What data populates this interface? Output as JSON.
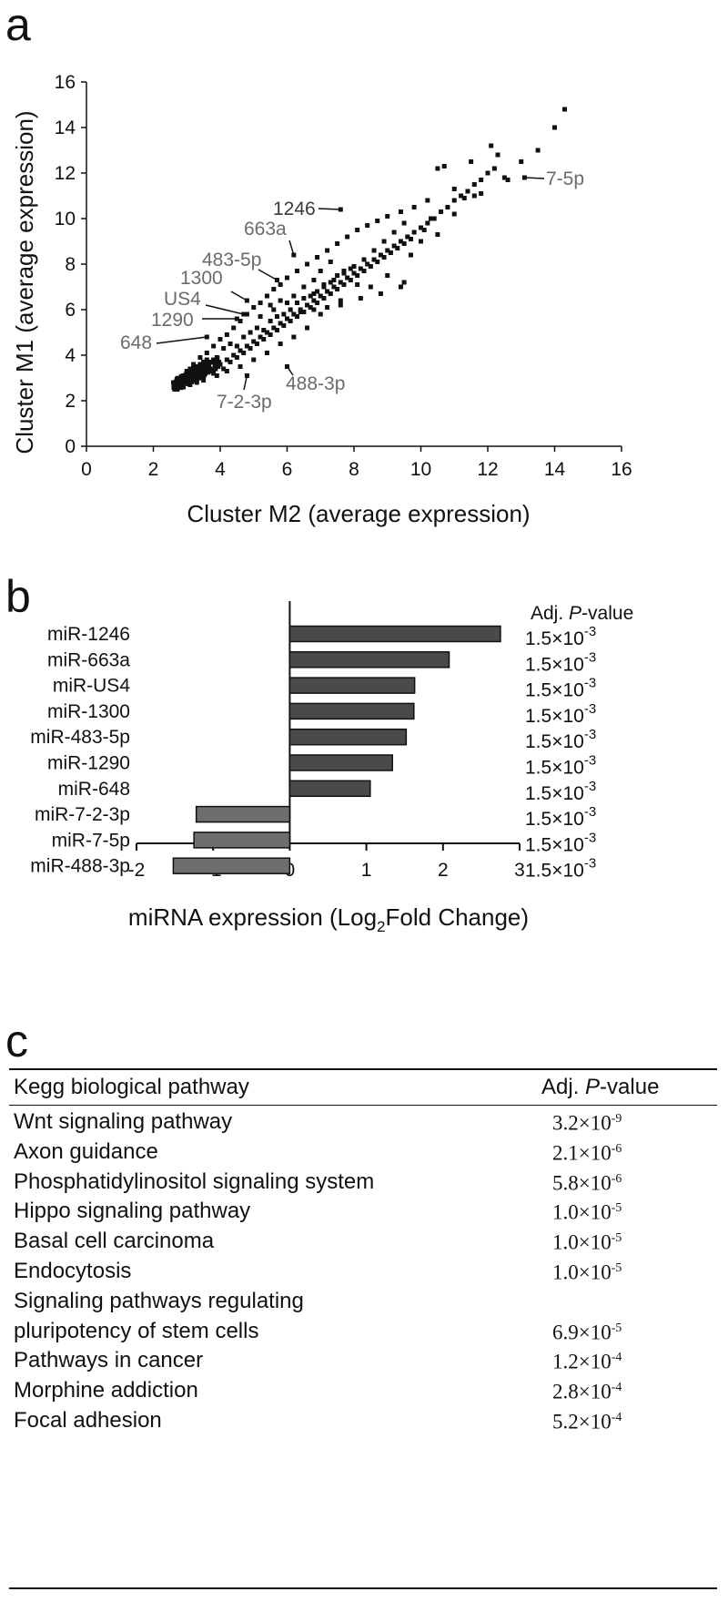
{
  "panels": {
    "a": "a",
    "b": "b",
    "c": "c"
  },
  "chart_data": [
    {
      "type": "scatter",
      "xlabel": "Cluster M2 (average expression)",
      "ylabel": "Cluster M1 (average expression)",
      "xlim": [
        0,
        16
      ],
      "ylim": [
        0,
        16
      ],
      "xticks": [
        0,
        2,
        4,
        6,
        8,
        10,
        12,
        14,
        16
      ],
      "yticks": [
        0,
        2,
        4,
        6,
        8,
        10,
        12,
        14,
        16
      ],
      "grid": false,
      "annotations": [
        {
          "label": "1246",
          "x": 7.6,
          "y": 10.4
        },
        {
          "label": "663a",
          "x": 6.2,
          "y": 8.4
        },
        {
          "label": "483-5p",
          "x": 5.7,
          "y": 7.3
        },
        {
          "label": "1300",
          "x": 4.8,
          "y": 6.4
        },
        {
          "label": "US4",
          "x": 4.7,
          "y": 5.8
        },
        {
          "label": "1290",
          "x": 4.5,
          "y": 5.6
        },
        {
          "label": "648",
          "x": 3.6,
          "y": 4.8
        },
        {
          "label": "7-5p",
          "x": 13.1,
          "y": 11.8
        },
        {
          "label": "488-3p",
          "x": 6.0,
          "y": 3.5
        },
        {
          "label": "7-2-3p",
          "x": 4.8,
          "y": 3.1
        }
      ],
      "points": [
        [
          2.6,
          2.8
        ],
        [
          2.7,
          2.7
        ],
        [
          2.8,
          2.8
        ],
        [
          2.9,
          2.7
        ],
        [
          3.0,
          2.9
        ],
        [
          3.1,
          2.8
        ],
        [
          3.2,
          3.0
        ],
        [
          3.3,
          2.9
        ],
        [
          3.4,
          3.2
        ],
        [
          3.5,
          3.1
        ],
        [
          3.6,
          3.3
        ],
        [
          3.7,
          3.4
        ],
        [
          3.8,
          3.2
        ],
        [
          3.9,
          3.5
        ],
        [
          4.0,
          3.6
        ],
        [
          4.1,
          3.4
        ],
        [
          4.2,
          3.8
        ],
        [
          4.3,
          3.7
        ],
        [
          4.4,
          4.0
        ],
        [
          4.5,
          3.9
        ],
        [
          4.6,
          4.2
        ],
        [
          4.7,
          4.1
        ],
        [
          4.8,
          4.4
        ],
        [
          4.9,
          4.3
        ],
        [
          5.0,
          4.6
        ],
        [
          5.1,
          4.5
        ],
        [
          5.2,
          4.8
        ],
        [
          5.3,
          4.7
        ],
        [
          5.4,
          5.0
        ],
        [
          5.5,
          4.9
        ],
        [
          5.6,
          5.2
        ],
        [
          5.7,
          5.1
        ],
        [
          5.8,
          5.4
        ],
        [
          5.9,
          5.3
        ],
        [
          6.0,
          5.6
        ],
        [
          6.1,
          5.5
        ],
        [
          6.2,
          5.8
        ],
        [
          6.3,
          5.7
        ],
        [
          6.4,
          6.0
        ],
        [
          6.5,
          5.9
        ],
        [
          6.6,
          6.2
        ],
        [
          6.7,
          6.1
        ],
        [
          6.8,
          6.4
        ],
        [
          6.9,
          6.3
        ],
        [
          7.0,
          6.6
        ],
        [
          7.1,
          6.5
        ],
        [
          7.2,
          6.8
        ],
        [
          7.3,
          6.7
        ],
        [
          7.4,
          7.0
        ],
        [
          7.5,
          6.9
        ],
        [
          7.6,
          7.2
        ],
        [
          7.7,
          7.1
        ],
        [
          7.8,
          7.4
        ],
        [
          7.9,
          7.3
        ],
        [
          8.0,
          7.6
        ],
        [
          8.1,
          7.5
        ],
        [
          8.2,
          7.8
        ],
        [
          8.3,
          7.7
        ],
        [
          8.4,
          8.0
        ],
        [
          8.5,
          7.9
        ],
        [
          8.6,
          8.2
        ],
        [
          8.7,
          8.1
        ],
        [
          8.8,
          8.4
        ],
        [
          8.9,
          8.3
        ],
        [
          9.0,
          8.6
        ],
        [
          9.1,
          8.5
        ],
        [
          9.2,
          8.8
        ],
        [
          9.3,
          8.7
        ],
        [
          9.4,
          9.0
        ],
        [
          9.5,
          8.9
        ],
        [
          9.6,
          9.2
        ],
        [
          9.7,
          9.1
        ],
        [
          9.8,
          9.4
        ],
        [
          10.0,
          9.6
        ],
        [
          10.2,
          9.8
        ],
        [
          10.4,
          10.0
        ],
        [
          10.6,
          10.3
        ],
        [
          10.8,
          10.5
        ],
        [
          11.0,
          10.8
        ],
        [
          11.2,
          11.0
        ],
        [
          11.4,
          11.2
        ],
        [
          11.6,
          11.5
        ],
        [
          11.8,
          11.7
        ],
        [
          12.0,
          12.0
        ],
        [
          12.2,
          12.2
        ],
        [
          12.5,
          11.8
        ],
        [
          13.0,
          12.5
        ],
        [
          13.5,
          13.0
        ],
        [
          14.0,
          14.0
        ],
        [
          14.3,
          14.8
        ],
        [
          3.0,
          3.3
        ],
        [
          3.2,
          3.6
        ],
        [
          3.4,
          3.9
        ],
        [
          3.6,
          4.1
        ],
        [
          3.8,
          4.4
        ],
        [
          4.0,
          4.7
        ],
        [
          4.2,
          4.9
        ],
        [
          4.4,
          5.2
        ],
        [
          4.6,
          5.5
        ],
        [
          4.8,
          5.8
        ],
        [
          5.0,
          6.1
        ],
        [
          5.2,
          6.3
        ],
        [
          5.4,
          6.6
        ],
        [
          5.6,
          6.9
        ],
        [
          5.8,
          7.1
        ],
        [
          6.0,
          7.4
        ],
        [
          6.3,
          7.7
        ],
        [
          6.6,
          8.0
        ],
        [
          6.9,
          8.3
        ],
        [
          7.2,
          8.6
        ],
        [
          7.5,
          8.9
        ],
        [
          7.8,
          9.2
        ],
        [
          8.1,
          9.5
        ],
        [
          8.4,
          9.7
        ],
        [
          8.7,
          9.9
        ],
        [
          9.0,
          10.1
        ],
        [
          9.4,
          10.3
        ],
        [
          9.8,
          10.5
        ],
        [
          10.2,
          10.8
        ],
        [
          10.5,
          12.2
        ],
        [
          10.7,
          12.3
        ],
        [
          11.5,
          12.5
        ],
        [
          12.1,
          13.2
        ],
        [
          12.3,
          12.8
        ],
        [
          11.0,
          11.3
        ],
        [
          11.3,
          10.9
        ],
        [
          11.6,
          11.0
        ],
        [
          12.6,
          11.7
        ],
        [
          10.3,
          10.0
        ],
        [
          10.1,
          9.5
        ],
        [
          9.5,
          9.8
        ],
        [
          9.2,
          9.4
        ],
        [
          8.9,
          9.0
        ],
        [
          8.6,
          8.6
        ],
        [
          8.3,
          8.2
        ],
        [
          8.0,
          7.9
        ],
        [
          7.7,
          7.6
        ],
        [
          7.4,
          7.3
        ],
        [
          7.1,
          7.0
        ],
        [
          6.8,
          6.7
        ],
        [
          9.4,
          7.0
        ],
        [
          9.5,
          7.2
        ],
        [
          8.8,
          6.7
        ],
        [
          8.2,
          6.5
        ],
        [
          7.6,
          6.2
        ],
        [
          7.0,
          5.8
        ],
        [
          6.6,
          5.2
        ],
        [
          6.2,
          4.8
        ],
        [
          5.8,
          4.5
        ],
        [
          5.4,
          4.1
        ],
        [
          5.0,
          3.8
        ],
        [
          4.6,
          3.5
        ],
        [
          4.2,
          3.3
        ],
        [
          3.9,
          3.1
        ],
        [
          3.5,
          2.9
        ],
        [
          3.3,
          2.8
        ],
        [
          2.9,
          2.6
        ],
        [
          3.1,
          2.7
        ],
        [
          6.4,
          5.9
        ],
        [
          6.8,
          6.0
        ],
        [
          7.2,
          6.1
        ],
        [
          7.6,
          6.4
        ],
        [
          8.1,
          7.1
        ],
        [
          8.5,
          7.0
        ],
        [
          9.0,
          7.5
        ],
        [
          9.7,
          8.4
        ],
        [
          10.0,
          9.0
        ],
        [
          10.5,
          9.3
        ],
        [
          11.0,
          10.2
        ],
        [
          11.8,
          11.1
        ],
        [
          4.1,
          4.3
        ],
        [
          4.3,
          4.5
        ],
        [
          4.5,
          4.4
        ],
        [
          4.7,
          4.8
        ],
        [
          4.9,
          5.0
        ],
        [
          5.1,
          5.2
        ],
        [
          5.3,
          5.1
        ],
        [
          5.5,
          5.5
        ],
        [
          5.7,
          5.7
        ],
        [
          5.9,
          5.8
        ],
        [
          6.1,
          6.0
        ],
        [
          6.3,
          6.3
        ],
        [
          6.5,
          6.5
        ],
        [
          6.7,
          6.6
        ],
        [
          6.9,
          6.8
        ],
        [
          7.1,
          7.1
        ],
        [
          7.3,
          7.2
        ],
        [
          7.5,
          7.5
        ],
        [
          7.7,
          7.7
        ],
        [
          7.9,
          7.8
        ],
        [
          3.1,
          3.1
        ],
        [
          3.3,
          3.3
        ],
        [
          3.5,
          3.5
        ],
        [
          3.7,
          3.7
        ],
        [
          3.9,
          3.9
        ],
        [
          3.0,
          3.0
        ],
        [
          3.2,
          3.2
        ],
        [
          3.4,
          3.4
        ],
        [
          3.6,
          3.6
        ],
        [
          3.8,
          3.8
        ],
        [
          2.7,
          2.9
        ],
        [
          2.8,
          3.0
        ],
        [
          2.9,
          3.1
        ],
        [
          3.0,
          3.2
        ],
        [
          3.1,
          3.4
        ],
        [
          3.2,
          3.4
        ],
        [
          3.3,
          3.5
        ],
        [
          3.4,
          3.6
        ],
        [
          3.5,
          3.7
        ],
        [
          3.6,
          3.8
        ],
        [
          6.0,
          6.3
        ],
        [
          6.2,
          6.6
        ],
        [
          6.5,
          7.0
        ],
        [
          6.8,
          7.3
        ],
        [
          7.0,
          7.7
        ],
        [
          7.3,
          8.1
        ],
        [
          5.6,
          6.0
        ],
        [
          5.8,
          6.4
        ],
        [
          5.2,
          5.7
        ],
        [
          5.5,
          6.2
        ],
        [
          7.6,
          10.4
        ],
        [
          6.2,
          8.4
        ],
        [
          5.7,
          7.3
        ],
        [
          4.8,
          6.4
        ],
        [
          4.7,
          5.8
        ],
        [
          4.5,
          5.6
        ],
        [
          3.6,
          4.8
        ],
        [
          13.1,
          11.8
        ],
        [
          6.0,
          3.5
        ],
        [
          4.8,
          3.1
        ]
      ]
    },
    {
      "type": "bar",
      "orientation": "horizontal",
      "xlabel_main": "miRNA expression (Log",
      "xlabel_sub": "2",
      "xlabel_tail": "Fold Change)",
      "xlim": [
        -2,
        3
      ],
      "xticks": [
        -2,
        -1,
        0,
        1,
        2,
        3
      ],
      "pvalue_header": "Adj. ",
      "pvalue_header_italic": "P",
      "pvalue_header_tail": "-value",
      "categories": [
        "miR-1246",
        "miR-663a",
        "miR-US4",
        "miR-1300",
        "miR-483-5p",
        "miR-1290",
        "miR-648",
        "miR-7-2-3p",
        "miR-7-5p",
        "miR-488-3p"
      ],
      "values": [
        2.75,
        2.08,
        1.63,
        1.62,
        1.52,
        1.34,
        1.05,
        -1.22,
        -1.25,
        -1.52
      ],
      "pvalues_base": [
        "1.5×10",
        "1.5×10",
        "1.5×10",
        "1.5×10",
        "1.5×10",
        "1.5×10",
        "1.5×10",
        "1.5×10",
        "1.5×10",
        "1.5×10"
      ],
      "pvalues_exp": [
        "-3",
        "-3",
        "-3",
        "-3",
        "-3",
        "-3",
        "-3",
        "-3",
        "-3",
        "-3"
      ],
      "colors": {
        "up": "#4a4a4a",
        "down": "#6e6e6e"
      }
    },
    {
      "type": "table",
      "header": {
        "name": "Kegg biological pathway",
        "pv_prefix": "Adj. ",
        "pv_italic": "P",
        "pv_suffix": "-value"
      },
      "rows": [
        {
          "name": "Wnt signaling pathway",
          "base": "3.2×10",
          "exp": "-9"
        },
        {
          "name": "Axon guidance",
          "base": "2.1×10",
          "exp": "-6"
        },
        {
          "name": "Phosphatidylinositol signaling system",
          "base": "5.8×10",
          "exp": "-6"
        },
        {
          "name": "Hippo signaling pathway",
          "base": "1.0×10",
          "exp": "-5"
        },
        {
          "name": "Basal cell carcinoma",
          "base": "1.0×10",
          "exp": "-5"
        },
        {
          "name": "Endocytosis",
          "base": "1.0×10",
          "exp": "-5"
        },
        {
          "name": "Signaling pathways regulating",
          "name2": "pluripotency of stem cells",
          "base": "6.9×10",
          "exp": "-5"
        },
        {
          "name": "Pathways in cancer",
          "base": "1.2×10",
          "exp": "-4"
        },
        {
          "name": "Morphine addiction",
          "base": "2.8×10",
          "exp": "-4"
        },
        {
          "name": "Focal adhesion",
          "base": "5.2×10",
          "exp": "-4"
        }
      ]
    }
  ]
}
